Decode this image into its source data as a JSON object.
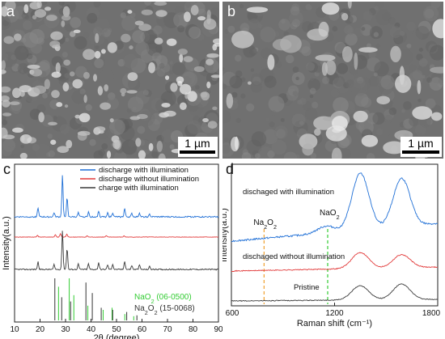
{
  "panels": {
    "a": {
      "letter": "a",
      "scale_label": "1 µm"
    },
    "b": {
      "letter": "b",
      "scale_label": "1 µm"
    },
    "c": {
      "letter": "c"
    },
    "d": {
      "letter": "d"
    }
  },
  "colors": {
    "blue": "#1f6fd6",
    "red": "#e23b3b",
    "dark": "#3a3a3a",
    "green": "#33cc33",
    "orange": "#f0a030"
  },
  "chart_data": [
    {
      "type": "line",
      "panel": "c",
      "xlabel": "2θ (degree)",
      "ylabel": "Intensity(a.u.)",
      "xlim": [
        10,
        90
      ],
      "xticks": [
        "10",
        "20",
        "30",
        "40",
        "50",
        "60",
        "70",
        "80",
        "90"
      ],
      "legend": "top-right",
      "series": [
        {
          "name": "discharge with illumination",
          "color": "#1f6fd6",
          "peaks": [
            [
              19.2,
              0.22
            ],
            [
              25.5,
              0.1
            ],
            [
              28.8,
              1.0
            ],
            [
              30.6,
              0.45
            ],
            [
              35.0,
              0.1
            ],
            [
              39.0,
              0.12
            ],
            [
              43.0,
              0.14
            ],
            [
              46.5,
              0.1
            ],
            [
              48.5,
              0.1
            ],
            [
              53.2,
              0.2
            ],
            [
              56.0,
              0.08
            ],
            [
              59.0,
              0.1
            ],
            [
              63.0,
              0.06
            ]
          ]
        },
        {
          "name": "discharge without illumination",
          "color": "#e23b3b",
          "peaks": [
            [
              19.0,
              0.12
            ],
            [
              26.0,
              0.15
            ],
            [
              28.0,
              0.2
            ],
            [
              30.5,
              0.18
            ],
            [
              38.5,
              0.08
            ],
            [
              46.0,
              0.08
            ],
            [
              53.0,
              0.08
            ]
          ]
        },
        {
          "name": "charge with illumination",
          "color": "#3a3a3a",
          "peaks": [
            [
              19.2,
              0.2
            ],
            [
              25.5,
              0.12
            ],
            [
              28.8,
              1.0
            ],
            [
              30.6,
              0.55
            ],
            [
              35.0,
              0.15
            ],
            [
              39.0,
              0.15
            ],
            [
              43.0,
              0.18
            ],
            [
              46.5,
              0.12
            ],
            [
              48.5,
              0.14
            ],
            [
              53.2,
              0.22
            ],
            [
              56.0,
              0.1
            ],
            [
              59.0,
              0.12
            ],
            [
              63.0,
              0.08
            ]
          ]
        }
      ],
      "references": [
        {
          "name": "NaO2 (06-0500)",
          "color": "#33cc33",
          "lines": [
            [
              27.0,
              0.8
            ],
            [
              31.2,
              1.0
            ],
            [
              33.0,
              0.6
            ],
            [
              38.5,
              0.35
            ],
            [
              44.5,
              0.25
            ],
            [
              48.0,
              0.3
            ],
            [
              53.0,
              0.15
            ],
            [
              56.5,
              0.1
            ]
          ]
        },
        {
          "name": "Na2O2 (15-0068)",
          "color": "#333333",
          "lines": [
            [
              25.8,
              1.0
            ],
            [
              28.5,
              0.55
            ],
            [
              32.0,
              0.45
            ],
            [
              38.0,
              0.9
            ],
            [
              40.5,
              0.65
            ],
            [
              44.0,
              0.3
            ],
            [
              48.5,
              0.25
            ],
            [
              54.0,
              0.2
            ],
            [
              58.0,
              0.12
            ]
          ]
        }
      ],
      "ref_legend": [
        {
          "parts": [
            {
              "t": "NaO"
            },
            {
              "t": "2",
              "sub": true
            },
            {
              "t": " (06-0500)"
            }
          ],
          "color": "#33cc33"
        },
        {
          "parts": [
            {
              "t": "Na"
            },
            {
              "t": "2",
              "sub": true
            },
            {
              "t": "O"
            },
            {
              "t": "2",
              "sub": true
            },
            {
              "t": " (15-0068)"
            }
          ],
          "color": "#333333"
        }
      ]
    },
    {
      "type": "line",
      "panel": "d",
      "xlabel": "Raman shift (cm⁻¹)",
      "ylabel": "Intensity(a.u.)",
      "xlim": [
        600,
        1800
      ],
      "xticks": [
        "600",
        "1200",
        "1800"
      ],
      "series": [
        {
          "name": "disch aged with illumination",
          "label": "dischaged with illumination",
          "color": "#1f6fd6",
          "peaks": [
            [
              1150,
              0.12
            ],
            [
              1350,
              1.0
            ],
            [
              1590,
              0.85
            ]
          ]
        },
        {
          "name": "dischaged without illumination",
          "label": "dischaged without illumination",
          "color": "#e23b3b",
          "peaks": [
            [
              1350,
              0.55
            ],
            [
              1590,
              0.45
            ]
          ]
        },
        {
          "name": "Pristine",
          "label": "Pristine",
          "color": "#3a3a3a",
          "peaks": [
            [
              1350,
              0.55
            ],
            [
              1590,
              0.6
            ]
          ]
        }
      ],
      "markers": [
        {
          "x": 790,
          "color": "#f0a030",
          "label_parts": [
            {
              "t": "Na"
            },
            {
              "t": "2",
              "sub": true
            },
            {
              "t": "O"
            },
            {
              "t": "2",
              "sub": true
            }
          ]
        },
        {
          "x": 1160,
          "color": "#33cc33",
          "label_parts": [
            {
              "t": "NaO"
            },
            {
              "t": "2",
              "sub": true
            }
          ]
        }
      ]
    }
  ]
}
